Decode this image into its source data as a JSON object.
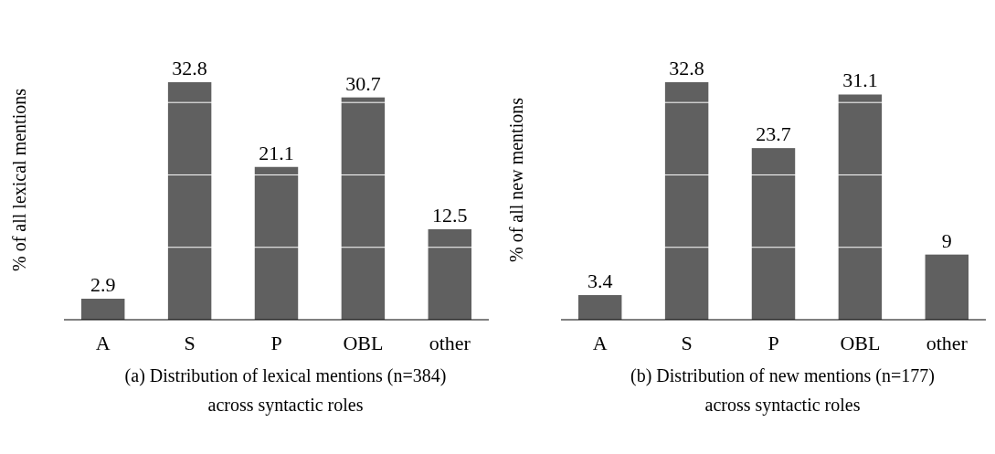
{
  "chart_data": [
    {
      "type": "bar",
      "categories": [
        "A",
        "S",
        "P",
        "OBL",
        "other"
      ],
      "values": [
        2.9,
        32.8,
        21.1,
        30.7,
        12.5
      ],
      "color": "#606060",
      "ylabel": "% of all lexical mentions",
      "yticks": [
        {
          "value": 10,
          "label": null
        },
        {
          "value": 20,
          "label": null
        },
        {
          "value": 30,
          "label": null
        }
      ],
      "grid": "y",
      "tick_labels": "x",
      "data_labels": true,
      "annotations": [
        "(a) Distribution of lexical mentions (n=384) across syntactic roles"
      ]
    },
    {
      "type": "bar",
      "categories": [
        "A",
        "S",
        "P",
        "OBL",
        "other"
      ],
      "values": [
        3.4,
        32.8,
        23.7,
        31.1,
        9
      ],
      "color": "#606060",
      "ylabel": "% of all new mentions",
      "yticks": [
        {
          "value": 10,
          "label": null
        },
        {
          "value": 20,
          "label": null
        },
        {
          "value": 30,
          "label": null
        }
      ],
      "grid": "y",
      "tick_labels": "x",
      "data_labels": true,
      "annotations": [
        "(b) Distribution of new mentions (n=177) across syntactic roles"
      ]
    }
  ]
}
